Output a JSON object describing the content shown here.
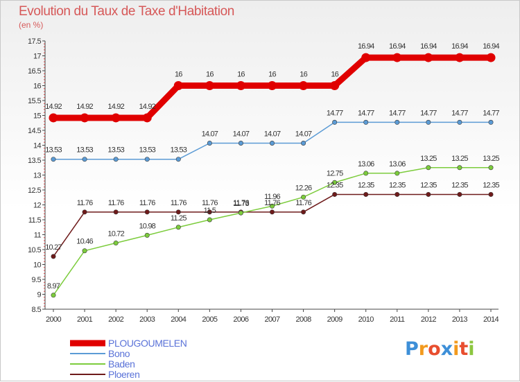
{
  "header": {
    "title": "Evolution du Taux de Taxe d'Habitation",
    "unit": "(en %)"
  },
  "logo": {
    "text": "Proxiti",
    "letters": [
      {
        "ch": "P",
        "color": "#3d8fd8"
      },
      {
        "ch": "r",
        "color": "#f29a1e"
      },
      {
        "ch": "o",
        "color": "#e84e2f"
      },
      {
        "ch": "x",
        "color": "#3d8fd8"
      },
      {
        "ch": "i",
        "color": "#f29a1e"
      },
      {
        "ch": "t",
        "color": "#e84e2f"
      },
      {
        "ch": "i",
        "color": "#8cc63f"
      }
    ]
  },
  "chart_data": {
    "type": "line",
    "title": "Evolution du Taux de Taxe d'Habitation",
    "ylabel": "(en %)",
    "xlabel": "",
    "x": [
      2000,
      2001,
      2002,
      2003,
      2004,
      2005,
      2006,
      2007,
      2008,
      2009,
      2010,
      2011,
      2012,
      2013,
      2014
    ],
    "ylim": [
      8.5,
      17.5
    ],
    "yticks": [
      8.5,
      9,
      9.5,
      10,
      10.5,
      11,
      11.5,
      12,
      12.5,
      13,
      13.5,
      14,
      14.5,
      15,
      15.5,
      16,
      16.5,
      17,
      17.5
    ],
    "ytick_labels": [
      "8.5",
      "9",
      "9.5",
      "10",
      "10.5",
      "11",
      "11.5",
      "12",
      "12.5",
      "13",
      "13.5",
      "14",
      "14.5",
      "15",
      "15.5",
      "16",
      "16.5",
      "17",
      "17.5"
    ],
    "grid": false,
    "legend_position": "bottom-left",
    "series": [
      {
        "name": "PLOUGOUMELEN",
        "color": "#e00000",
        "values": [
          14.92,
          14.92,
          14.92,
          14.92,
          16,
          16,
          16,
          16,
          16,
          16,
          16.94,
          16.94,
          16.94,
          16.94,
          16.94
        ],
        "labels": [
          "14.92",
          "14.92",
          "14.92",
          "14.92",
          "16",
          "16",
          "16",
          "16",
          "16",
          "16",
          "16.94",
          "16.94",
          "16.94",
          "16.94",
          "16.94"
        ]
      },
      {
        "name": "Bono",
        "color": "#5b9bd5",
        "values": [
          13.53,
          13.53,
          13.53,
          13.53,
          13.53,
          14.07,
          14.07,
          14.07,
          14.07,
          14.77,
          14.77,
          14.77,
          14.77,
          14.77,
          14.77
        ],
        "labels": [
          "13.53",
          "13.53",
          "13.53",
          "13.53",
          "13.53",
          "14.07",
          "14.07",
          "14.07",
          "14.07",
          "14.77",
          "14.77",
          "14.77",
          "14.77",
          "14.77",
          "14.77"
        ]
      },
      {
        "name": "Baden",
        "color": "#7ccc3c",
        "values": [
          8.97,
          10.46,
          10.72,
          10.98,
          11.25,
          11.5,
          11.73,
          11.96,
          12.26,
          12.75,
          13.06,
          13.06,
          13.25,
          13.25,
          13.25
        ],
        "labels": [
          "8.97",
          "10.46",
          "10.72",
          "10.98",
          "11.25",
          "11.5",
          "11.73",
          "11.96",
          "12.26",
          "12.75",
          "13.06",
          "13.06",
          "13.25",
          "13.25",
          "13.25"
        ]
      },
      {
        "name": "Ploeren",
        "color": "#6e1a1a",
        "values": [
          10.27,
          11.76,
          11.76,
          11.76,
          11.76,
          11.76,
          11.76,
          11.76,
          11.76,
          12.35,
          12.35,
          12.35,
          12.35,
          12.35,
          12.35
        ],
        "labels": [
          "10.27",
          "11.76",
          "11.76",
          "11.76",
          "11.76",
          "11.76",
          "11.76",
          "11.76",
          "11.76",
          "12.35",
          "12.35",
          "12.35",
          "12.35",
          "12.35",
          "12.35"
        ]
      }
    ]
  }
}
